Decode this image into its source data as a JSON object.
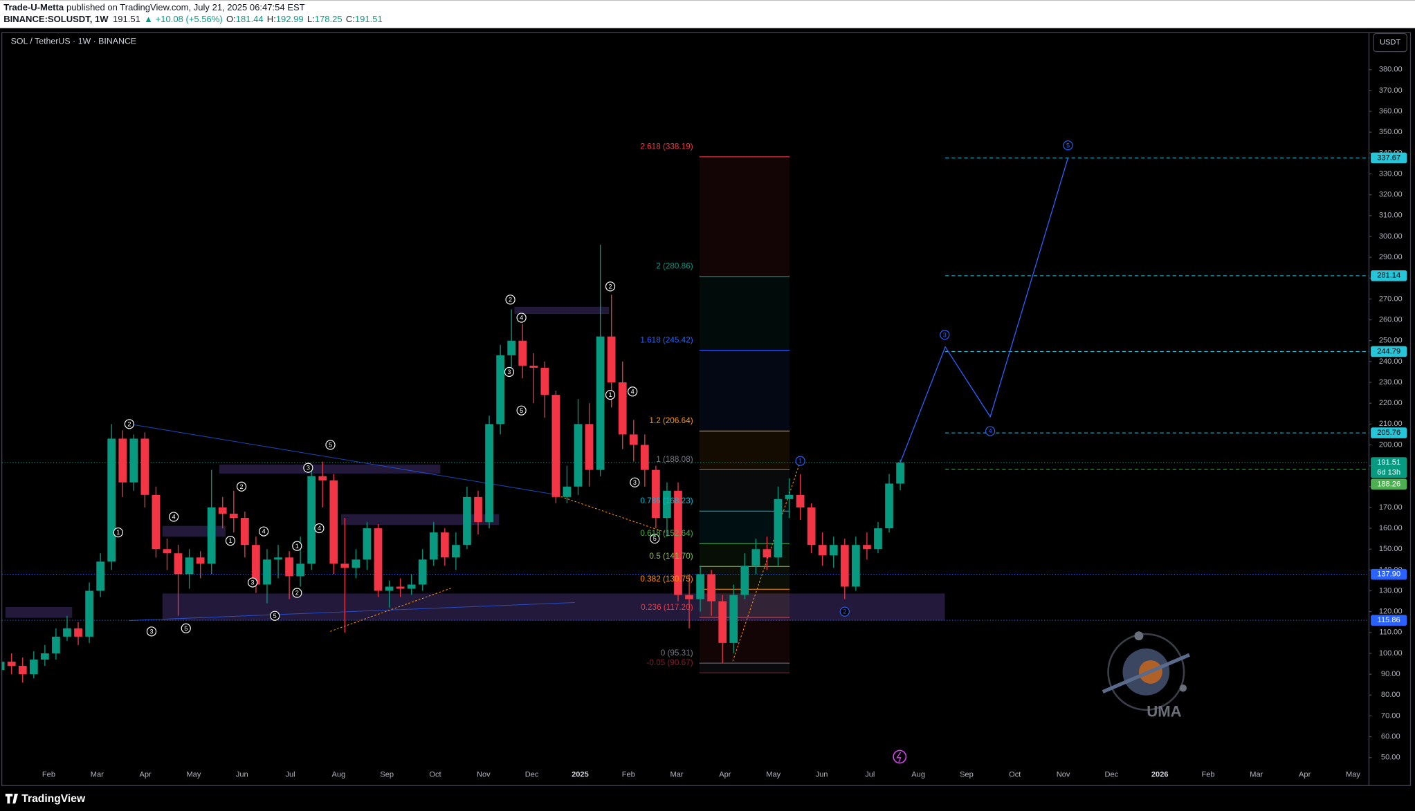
{
  "header": {
    "publisher": "Trade-U-Metta",
    "published": "published on TradingView.com, July 21, 2025 06:47:54 EST",
    "symbol": "BINANCE:SOLUSDT, 1W",
    "change": "▲ +10.08 (+5.56%)",
    "o": "O:",
    "h": "H:",
    "l": "L:",
    "c": "C:"
  },
  "chart_data": {
    "type": "candlestick",
    "title": "SOL / TetherUS · 1W · BINANCE",
    "currency": "USDT",
    "x_labels": [
      "Feb",
      "Mar",
      "Apr",
      "May",
      "Jun",
      "Jul",
      "Aug",
      "Sep",
      "Oct",
      "Nov",
      "Dec",
      "2025",
      "Feb",
      "Mar",
      "Apr",
      "May",
      "Jun",
      "Jul",
      "Aug",
      "Sep",
      "Oct",
      "Nov",
      "Dec",
      "2026",
      "Feb",
      "Mar",
      "Apr",
      "May"
    ],
    "candles": {
      "open": [
        92,
        96,
        94,
        90,
        97,
        100,
        108,
        112,
        108,
        130,
        144,
        203,
        182,
        203,
        176,
        150,
        148,
        138,
        146,
        143,
        170,
        167,
        165,
        152,
        133,
        145,
        146,
        137,
        143,
        185,
        183,
        143,
        141,
        145,
        160,
        130,
        132,
        131,
        133,
        145,
        158,
        146,
        152,
        175,
        163,
        210,
        243,
        250,
        238,
        237,
        224,
        175,
        180,
        210,
        188,
        252,
        230,
        205,
        200,
        188,
        165,
        178,
        128,
        126,
        138,
        125,
        105,
        128,
        142,
        150,
        146,
        174,
        176,
        170,
        152,
        147,
        152,
        132,
        152,
        150,
        160,
        181.44
      ],
      "high": [
        100,
        100,
        98,
        101,
        104,
        112,
        118,
        115,
        134,
        148,
        210,
        207,
        205,
        206,
        180,
        155,
        152,
        150,
        149,
        188,
        175,
        178,
        168,
        156,
        150,
        152,
        149,
        156,
        188,
        192,
        186,
        165,
        150,
        163,
        162,
        135,
        136,
        138,
        150,
        163,
        160,
        158,
        180,
        178,
        214,
        248,
        265,
        258,
        244,
        240,
        226,
        190,
        222,
        220,
        296,
        272,
        240,
        212,
        205,
        190,
        182,
        182,
        138,
        142,
        140,
        128,
        133,
        148,
        155,
        156,
        180,
        184,
        186,
        172,
        158,
        156,
        155,
        156,
        158,
        163,
        186,
        192.99
      ],
      "low": [
        88,
        90,
        86,
        88,
        94,
        97,
        106,
        104,
        105,
        127,
        140,
        175,
        178,
        170,
        146,
        140,
        118,
        131,
        136,
        138,
        160,
        158,
        146,
        129,
        124,
        136,
        126,
        132,
        140,
        170,
        138,
        110,
        136,
        140,
        127,
        122,
        127,
        128,
        130,
        142,
        142,
        140,
        150,
        157,
        160,
        205,
        236,
        232,
        220,
        213,
        172,
        172,
        176,
        180,
        185,
        218,
        198,
        192,
        180,
        160,
        156,
        125,
        112,
        120,
        118,
        95.3,
        100,
        126,
        138,
        140,
        142,
        165,
        164,
        148,
        142,
        141,
        126,
        130,
        145,
        148,
        158,
        178.25
      ],
      "close": [
        96,
        94,
        90,
        97,
        100,
        108,
        112,
        108,
        130,
        144,
        203,
        182,
        203,
        176,
        150,
        148,
        138,
        146,
        143,
        170,
        167,
        165,
        152,
        133,
        145,
        146,
        137,
        143,
        185,
        183,
        143,
        141,
        145,
        160,
        130,
        132,
        131,
        133,
        145,
        158,
        146,
        152,
        175,
        163,
        210,
        243,
        250,
        238,
        237,
        224,
        175,
        180,
        210,
        188,
        252,
        230,
        205,
        200,
        188,
        165,
        178,
        128,
        126,
        138,
        125,
        105,
        128,
        142,
        150,
        146,
        174,
        176,
        170,
        152,
        147,
        152,
        132,
        152,
        150,
        160,
        181.44,
        191.51
      ]
    },
    "colors": {
      "up": "#089981",
      "down": "#f23645"
    },
    "ylim": [
      37,
      396.9
    ],
    "yticks": [
      {
        "value": 50,
        "label": "50.00"
      },
      {
        "value": 60,
        "label": "60.00"
      },
      {
        "value": 70,
        "label": "70.00"
      },
      {
        "value": 80,
        "label": "80.00"
      },
      {
        "value": 90,
        "label": "90.00"
      },
      {
        "value": 100,
        "label": "100.00"
      },
      {
        "value": 110,
        "label": "110.00"
      },
      {
        "value": 120,
        "label": "120.00"
      },
      {
        "value": 130,
        "label": "130.00"
      },
      {
        "value": 140,
        "label": "140.00"
      },
      {
        "value": 150,
        "label": "150.00"
      },
      {
        "value": 160,
        "label": "160.00"
      },
      {
        "value": 170,
        "label": "170.00"
      },
      {
        "value": 180,
        "label": "180.00"
      },
      {
        "value": 190,
        "label": "190.00"
      },
      {
        "value": 200,
        "label": "200.00"
      },
      {
        "value": 210,
        "label": "210.00"
      },
      {
        "value": 220,
        "label": "220.00"
      },
      {
        "value": 230,
        "label": "230.00"
      },
      {
        "value": 240,
        "label": "240.00"
      },
      {
        "value": 250,
        "label": "250.00"
      },
      {
        "value": 260,
        "label": "260.00"
      },
      {
        "value": 270,
        "label": "270.00"
      },
      {
        "value": 280,
        "label": "280.00"
      },
      {
        "value": 290,
        "label": "290.00"
      },
      {
        "value": 300,
        "label": "300.00"
      },
      {
        "value": 310,
        "label": "310.00"
      },
      {
        "value": 320,
        "label": "320.00"
      },
      {
        "value": 330,
        "label": "330.00"
      },
      {
        "value": 340,
        "label": "340.00"
      },
      {
        "value": 350,
        "label": "350.00"
      },
      {
        "value": 360,
        "label": "360.00"
      },
      {
        "value": 370,
        "label": "370.00"
      },
      {
        "value": 380,
        "label": "380.00"
      }
    ],
    "fib_levels": [
      {
        "label": "2.618 (338.19)",
        "value": 338.19,
        "color": "#f23645"
      },
      {
        "label": "2 (280.86)",
        "value": 280.86,
        "color": "#089981"
      },
      {
        "label": "1.618 (245.42)",
        "value": 245.42,
        "color": "#2962ff"
      },
      {
        "label": "1.2 (206.64)",
        "value": 206.64,
        "color": "#ff9800"
      },
      {
        "label": "1 (188.08)",
        "value": 188.08,
        "color": "#787b86"
      },
      {
        "label": "0.786 (168.23)",
        "value": 168.23,
        "color": "#00bcd4"
      },
      {
        "label": "0.618 (152.64)",
        "value": 152.64,
        "color": "#4caf50"
      },
      {
        "label": "0.5 (141.70)",
        "value": 141.7,
        "color": "#8bc34a"
      },
      {
        "label": "0.382 (130.75)",
        "value": 130.75,
        "color": "#ff9800"
      },
      {
        "label": "0.236 (117.20)",
        "value": 117.2,
        "color": "#f23645"
      },
      {
        "label": "0 (95.31)",
        "value": 95.31,
        "color": "#787b86"
      },
      {
        "label": "-0.05 (90.67)",
        "value": 90.67,
        "color": "#8b1a2a"
      }
    ],
    "price_tags": [
      {
        "value": 337.67,
        "label": "337.67",
        "color": "#26c6da",
        "line": "dashed"
      },
      {
        "value": 281.14,
        "label": "281.14",
        "color": "#26c6da",
        "line": "dashed"
      },
      {
        "value": 244.79,
        "label": "244.79",
        "color": "#26c6da",
        "line": "dashed"
      },
      {
        "value": 205.76,
        "label": "205.76",
        "color": "#26c6da",
        "line": "dashed"
      },
      {
        "value": 191.51,
        "label": "191.51",
        "countdown": "6d 13h",
        "color": "#089981",
        "line": "dotted"
      },
      {
        "value": 188.26,
        "label": "188.26",
        "color": "#4caf50",
        "line": "dashed"
      },
      {
        "value": 137.9,
        "label": "137.90",
        "color": "#2962ff",
        "line": "dotted"
      },
      {
        "value": 115.86,
        "label": "115.86",
        "color": "#2962ff",
        "line": "dotted"
      }
    ],
    "projection": {
      "week": [
        81,
        85.05,
        89.1,
        96.1
      ],
      "price": [
        191.51,
        247,
        213.5,
        337.7
      ],
      "color": "#2962ff"
    },
    "wave_labels": [
      {
        "text": "2",
        "week": 11.6,
        "price": 210,
        "color": "#ffffff"
      },
      {
        "text": "1",
        "week": 10.6,
        "price": 158,
        "color": "#ffffff"
      },
      {
        "text": "3",
        "week": 13.6,
        "price": 110.5,
        "color": "#ffffff"
      },
      {
        "text": "4",
        "week": 15.6,
        "price": 165.5,
        "color": "#ffffff"
      },
      {
        "text": "5",
        "week": 16.7,
        "price": 112,
        "color": "#ffffff"
      },
      {
        "text": "2",
        "week": 21.7,
        "price": 180,
        "color": "#ffffff"
      },
      {
        "text": "1",
        "week": 20.7,
        "price": 154,
        "color": "#ffffff"
      },
      {
        "text": "3",
        "week": 22.7,
        "price": 134,
        "color": "#ffffff"
      },
      {
        "text": "4",
        "week": 23.7,
        "price": 158.5,
        "color": "#ffffff"
      },
      {
        "text": "5",
        "week": 24.7,
        "price": 118,
        "color": "#ffffff"
      },
      {
        "text": "1",
        "week": 26.7,
        "price": 151.5,
        "color": "#ffffff"
      },
      {
        "text": "2",
        "week": 26.7,
        "price": 129,
        "color": "#ffffff"
      },
      {
        "text": "3",
        "week": 27.7,
        "price": 189,
        "color": "#ffffff"
      },
      {
        "text": "4",
        "week": 28.7,
        "price": 160,
        "color": "#ffffff"
      },
      {
        "text": "5",
        "week": 29.7,
        "price": 200,
        "color": "#ffffff"
      },
      {
        "text": "2",
        "week": 45.9,
        "price": 269.7,
        "color": "#ffffff"
      },
      {
        "text": "4",
        "week": 46.9,
        "price": 261,
        "color": "#ffffff"
      },
      {
        "text": "3",
        "week": 45.8,
        "price": 235,
        "color": "#ffffff"
      },
      {
        "text": "5",
        "week": 46.9,
        "price": 216.5,
        "color": "#ffffff"
      },
      {
        "text": "2",
        "week": 54.9,
        "price": 276,
        "color": "#ffffff"
      },
      {
        "text": "1",
        "week": 54.9,
        "price": 224,
        "color": "#ffffff"
      },
      {
        "text": "4",
        "week": 56.9,
        "price": 225.6,
        "color": "#ffffff"
      },
      {
        "text": "3",
        "week": 57.1,
        "price": 182,
        "color": "#ffffff"
      },
      {
        "text": "5",
        "week": 58.9,
        "price": 155,
        "color": "#ffffff"
      },
      {
        "text": "1",
        "week": 72,
        "price": 192.3,
        "color": "#2962ff"
      },
      {
        "text": "2",
        "week": 76,
        "price": 120,
        "color": "#2962ff"
      },
      {
        "text": "3",
        "week": 85,
        "price": 252.8,
        "color": "#2962ff"
      },
      {
        "text": "4",
        "week": 89.1,
        "price": 206.6,
        "color": "#2962ff"
      },
      {
        "text": "5",
        "week": 96.1,
        "price": 343.7,
        "color": "#2962ff"
      }
    ]
  },
  "footer": {
    "brand": "TradingView",
    "watermark": "UMA"
  }
}
